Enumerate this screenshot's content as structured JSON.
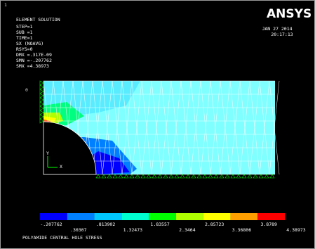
{
  "window_number": "1",
  "header": {
    "lines": [
      "ELEMENT SOLUTION",
      "STEP=1",
      "SUB =1",
      "TIME=1",
      "SX       (NOAVG)",
      "RSYS=0",
      "DMX =.317E-09",
      "SMN =-.207762",
      "SMX =4.38973"
    ],
    "logo": "ANSYS",
    "date": "JAN 27 2014",
    "time": "20:17:13"
  },
  "plot": {
    "marker": "0",
    "axis_y": "Y",
    "axis_x": "X"
  },
  "legend": {
    "items": [
      {
        "label": "-.207762",
        "color": "#0000ff"
      },
      {
        "label": ".30307",
        "color": "#0080ff"
      },
      {
        "label": ".813902",
        "color": "#00c8ff"
      },
      {
        "label": "1.32473",
        "color": "#00ffd0"
      },
      {
        "label": "1.83557",
        "color": "#00ff00"
      },
      {
        "label": "2.3464",
        "color": "#b0ff00"
      },
      {
        "label": "2.85723",
        "color": "#ffff00"
      },
      {
        "label": "3.36806",
        "color": "#ffa000"
      },
      {
        "label": "3.8789",
        "color": "#ff0000"
      }
    ],
    "last_label": "4.38973"
  },
  "footer": {
    "title": "POLYAMIDE CENTRAL HOLE STRESS"
  }
}
